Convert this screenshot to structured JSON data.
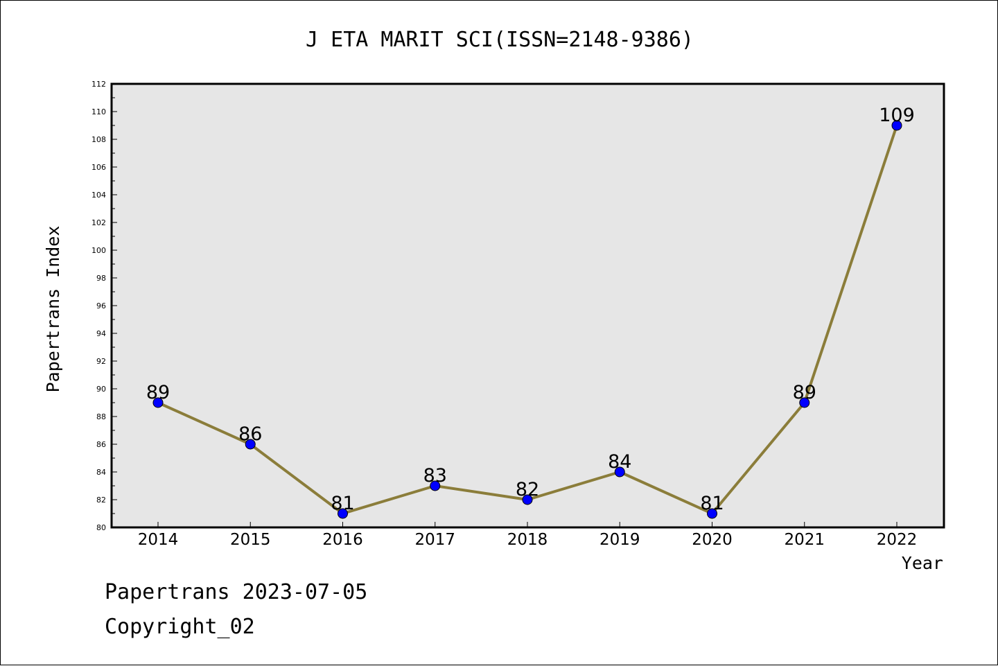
{
  "footer": {
    "line1": "Papertrans 2023-07-05",
    "line2": "Copyright_02"
  },
  "chart_data": {
    "type": "line",
    "title": "J ETA MARIT SCI(ISSN=2148-9386)",
    "xlabel": "Year",
    "ylabel": "Papertrans Index",
    "categories": [
      "2014",
      "2015",
      "2016",
      "2017",
      "2018",
      "2019",
      "2020",
      "2021",
      "2022"
    ],
    "series": [
      {
        "values": [
          89,
          86,
          81,
          83,
          82,
          84,
          81,
          89,
          109
        ]
      }
    ],
    "ylim": [
      80,
      112
    ],
    "yticks": [
      80,
      82,
      84,
      86,
      88,
      90,
      92,
      94,
      96,
      98,
      100,
      102,
      104,
      106,
      108,
      110,
      112
    ],
    "grid": false,
    "legend": "none",
    "data_labels": true,
    "colors": {
      "line": "#8B7D3A",
      "marker": "#0000FF",
      "plot_background": "#E6E6E6"
    }
  }
}
